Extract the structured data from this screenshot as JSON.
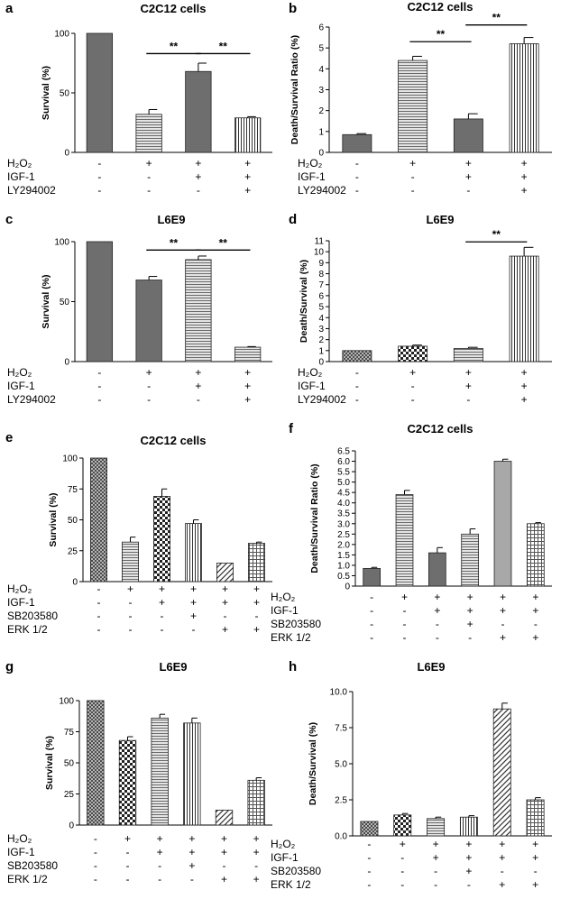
{
  "figure": {
    "conditions": {
      "h2o2": "H₂O₂",
      "igf1": "IGF-1",
      "ly": "LY294002",
      "sb": "SB203580",
      "erk": "ERK 1/2",
      "plus": "+",
      "minus": "-"
    }
  },
  "chart_data": [
    {
      "panel": "a",
      "type": "bar",
      "title": "C2C12 cells",
      "ylabel": "Survival (%)",
      "ylim": [
        0,
        100
      ],
      "yticks": [
        0,
        50,
        100
      ],
      "values": [
        100,
        32,
        68,
        29
      ],
      "errors": [
        0,
        4,
        7,
        1
      ],
      "patterns": [
        "solidDark",
        "horizLines",
        "solidDark",
        "vertLines"
      ],
      "rows": [
        [
          "h2o2",
          [
            "-",
            "+",
            "+",
            "+"
          ]
        ],
        [
          "igf1",
          [
            "-",
            "-",
            "+",
            "+"
          ]
        ],
        [
          "ly",
          [
            "-",
            "-",
            "-",
            "+"
          ]
        ]
      ],
      "significance": [
        {
          "from": 1,
          "to": 2,
          "label": "**",
          "y": 83
        },
        {
          "from": 2,
          "to": 3,
          "label": "**",
          "y": 83
        }
      ]
    },
    {
      "panel": "b",
      "type": "bar",
      "title": "C2C12 cells",
      "ylabel": "Death/Survival Ratio (%)",
      "ylim": [
        0,
        6
      ],
      "yticks": [
        0,
        1,
        2,
        3,
        4,
        5,
        6
      ],
      "values": [
        0.85,
        4.4,
        1.6,
        5.2
      ],
      "errors": [
        0.05,
        0.2,
        0.25,
        0.3
      ],
      "patterns": [
        "solidDark",
        "horizLines",
        "solidDark",
        "vertLines"
      ],
      "rows": [
        [
          "h2o2",
          [
            "-",
            "+",
            "+",
            "+"
          ]
        ],
        [
          "igf1",
          [
            "-",
            "-",
            "+",
            "+"
          ]
        ],
        [
          "ly",
          [
            "-",
            "-",
            "-",
            "+"
          ]
        ]
      ],
      "significance": [
        {
          "from": 1,
          "to": 2,
          "label": "**",
          "y": 5.3
        },
        {
          "from": 2,
          "to": 3,
          "label": "**",
          "y": 6.1
        }
      ]
    },
    {
      "panel": "c",
      "type": "bar",
      "title": "L6E9",
      "ylabel": "Survival (%)",
      "ylim": [
        0,
        100
      ],
      "yticks": [
        0,
        50,
        100
      ],
      "values": [
        100,
        68,
        85,
        12
      ],
      "errors": [
        0,
        3,
        3,
        0.5
      ],
      "patterns": [
        "solidDark",
        "solidDark",
        "horizLines",
        "horizLines"
      ],
      "rows": [
        [
          "h2o2",
          [
            "-",
            "+",
            "+",
            "+"
          ]
        ],
        [
          "igf1",
          [
            "-",
            "-",
            "+",
            "+"
          ]
        ],
        [
          "ly",
          [
            "-",
            "-",
            "-",
            "+"
          ]
        ]
      ],
      "significance": [
        {
          "from": 1,
          "to": 2,
          "label": "**",
          "y": 93
        },
        {
          "from": 2,
          "to": 3,
          "label": "**",
          "y": 93
        }
      ]
    },
    {
      "panel": "d",
      "type": "bar",
      "title": "L6E9",
      "ylabel": "Death/Survival (%)",
      "ylim": [
        0,
        11
      ],
      "yticks": [
        0,
        1,
        2,
        3,
        4,
        5,
        6,
        7,
        8,
        9,
        10,
        11
      ],
      "values": [
        1.0,
        1.4,
        1.2,
        9.6
      ],
      "errors": [
        0,
        0.1,
        0.1,
        0.8
      ],
      "patterns": [
        "crossHatch",
        "checker",
        "horizLines",
        "vertLines"
      ],
      "rows": [
        [
          "h2o2",
          [
            "-",
            "+",
            "+",
            "+"
          ]
        ],
        [
          "igf1",
          [
            "-",
            "-",
            "+",
            "+"
          ]
        ],
        [
          "ly",
          [
            "-",
            "-",
            "-",
            "+"
          ]
        ]
      ],
      "significance": [
        {
          "from": 2,
          "to": 3,
          "label": "**",
          "y": 10.9
        }
      ]
    },
    {
      "panel": "e",
      "type": "bar",
      "title": "C2C12 cells",
      "ylabel": "Survival (%)",
      "ylim": [
        0,
        100
      ],
      "yticks": [
        0,
        25,
        50,
        75,
        100
      ],
      "values": [
        100,
        32,
        69,
        47,
        15,
        31
      ],
      "errors": [
        0,
        4,
        6,
        3,
        0,
        1
      ],
      "patterns": [
        "crossHatch",
        "horizLines",
        "checker",
        "vertLines",
        "diag",
        "grid"
      ],
      "rows": [
        [
          "h2o2",
          [
            "-",
            "+",
            "+",
            "+",
            "+",
            "+"
          ]
        ],
        [
          "igf1",
          [
            "-",
            "-",
            "+",
            "+",
            "+",
            "+"
          ]
        ],
        [
          "sb",
          [
            "-",
            "-",
            "-",
            "+",
            "-",
            "-"
          ]
        ],
        [
          "erk",
          [
            "-",
            "-",
            "-",
            "-",
            "+",
            "+"
          ]
        ]
      ]
    },
    {
      "panel": "f",
      "type": "bar",
      "title": "C2C12 cells",
      "ylabel": "Death/Survival Ratio (%)",
      "ylim": [
        0,
        6.5
      ],
      "yticks": [
        0,
        0.5,
        1.0,
        1.5,
        2.0,
        2.5,
        3.0,
        3.5,
        4.0,
        4.5,
        5.0,
        5.5,
        6.0,
        6.5
      ],
      "ytickLabels": [
        "0",
        "0.5",
        "1.0",
        "1.5",
        "2.0",
        "2.5",
        "3.0",
        "3.5",
        "4.0",
        "4.5",
        "5.0",
        "5.5",
        "6.0",
        "6.5"
      ],
      "values": [
        0.85,
        4.4,
        1.6,
        2.5,
        6.0,
        3.0
      ],
      "errors": [
        0.05,
        0.2,
        0.25,
        0.25,
        0.1,
        0.05
      ],
      "patterns": [
        "solidDark",
        "horizLines",
        "solidDark",
        "horizLines",
        "solidLight",
        "grid"
      ],
      "rows": [
        [
          "h2o2",
          [
            "-",
            "+",
            "+",
            "+",
            "+",
            "+"
          ]
        ],
        [
          "igf1",
          [
            "-",
            "-",
            "+",
            "+",
            "+",
            "+"
          ]
        ],
        [
          "sb",
          [
            "-",
            "-",
            "-",
            "+",
            "-",
            "-"
          ]
        ],
        [
          "erk",
          [
            "-",
            "-",
            "-",
            "-",
            "+",
            "+"
          ]
        ]
      ]
    },
    {
      "panel": "g",
      "type": "bar",
      "title": "L6E9",
      "ylabel": "Survival (%)",
      "ylim": [
        0,
        100
      ],
      "yticks": [
        0,
        25,
        50,
        75,
        100
      ],
      "values": [
        100,
        68,
        86,
        82,
        12,
        36
      ],
      "errors": [
        0,
        3,
        3,
        4,
        0,
        2
      ],
      "patterns": [
        "crossHatch",
        "checker",
        "horizLines",
        "vertLines",
        "diag",
        "grid"
      ],
      "rows": [
        [
          "h2o2",
          [
            "-",
            "+",
            "+",
            "+",
            "+",
            "+"
          ]
        ],
        [
          "igf1",
          [
            "-",
            "-",
            "+",
            "+",
            "+",
            "+"
          ]
        ],
        [
          "sb",
          [
            "-",
            "-",
            "-",
            "+",
            "-",
            "-"
          ]
        ],
        [
          "erk",
          [
            "-",
            "-",
            "-",
            "-",
            "+",
            "+"
          ]
        ]
      ]
    },
    {
      "panel": "h",
      "type": "bar",
      "title": "L6E9",
      "ylabel": "Death/Survival (%)",
      "ylim": [
        0,
        10
      ],
      "yticks": [
        0,
        2.5,
        5,
        7.5,
        10
      ],
      "ytickLabels": [
        "0.0",
        "2.5",
        "5.0",
        "7.5",
        "10.0"
      ],
      "values": [
        1.0,
        1.45,
        1.2,
        1.3,
        8.8,
        2.5
      ],
      "errors": [
        0,
        0.1,
        0.1,
        0.1,
        0.4,
        0.15
      ],
      "patterns": [
        "crossHatch",
        "checker",
        "horizLines",
        "vertLines",
        "diag",
        "grid"
      ],
      "rows": [
        [
          "h2o2",
          [
            "-",
            "+",
            "+",
            "+",
            "+",
            "+"
          ]
        ],
        [
          "igf1",
          [
            "-",
            "-",
            "+",
            "+",
            "+",
            "+"
          ]
        ],
        [
          "sb",
          [
            "-",
            "-",
            "-",
            "+",
            "-",
            "-"
          ]
        ],
        [
          "erk",
          [
            "-",
            "-",
            "-",
            "-",
            "+",
            "+"
          ]
        ]
      ]
    }
  ]
}
